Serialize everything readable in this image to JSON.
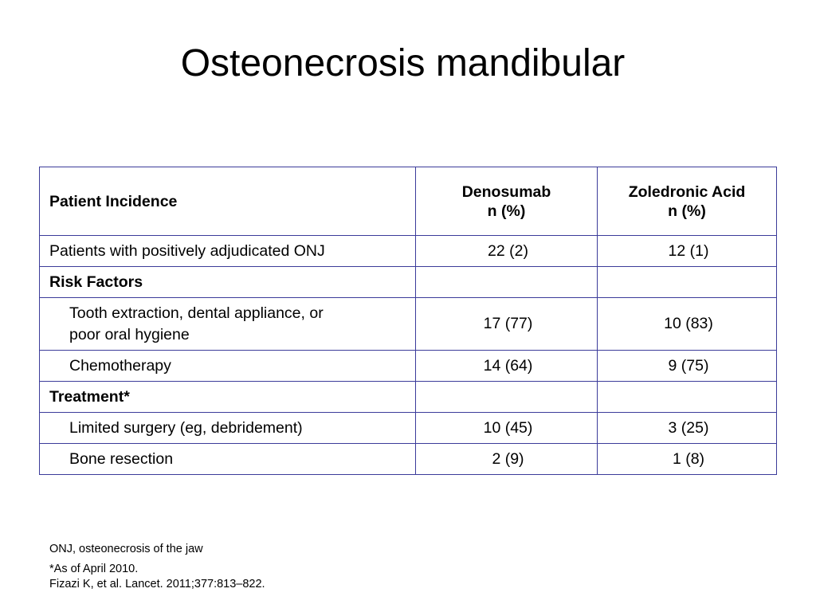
{
  "slide": {
    "title": "Osteonecrosis mandibular"
  },
  "table": {
    "header": {
      "col1": "Patient Incidence",
      "col2_line1": "Denosumab",
      "col2_line2": "n (%)",
      "col3_line1": "Zoledronic Acid",
      "col3_line2": "n (%)"
    },
    "rows": [
      {
        "label": "Patients with positively adjudicated ONJ",
        "denosumab": "22 (2)",
        "zoledronic": "12 (1)"
      },
      {
        "label": "Risk Factors"
      },
      {
        "label_line1": "Tooth extraction, dental appliance, or",
        "label_line2": "poor oral hygiene",
        "denosumab": "17 (77)",
        "zoledronic": "10 (83)"
      },
      {
        "label": "Chemotherapy",
        "denosumab": "14 (64)",
        "zoledronic": "9 (75)"
      },
      {
        "label": "Treatment*"
      },
      {
        "label": "Limited surgery (eg, debridement)",
        "denosumab": "10 (45)",
        "zoledronic": "3 (25)"
      },
      {
        "label": "Bone resection",
        "denosumab": "2 (9)",
        "zoledronic": "1 (8)"
      }
    ]
  },
  "footnotes": {
    "abbreviation": "ONJ, osteonecrosis of the jaw",
    "as_of": "*As of April 2010.",
    "reference": "Fizazi K, et al. Lancet. 2011;377:813–822."
  }
}
